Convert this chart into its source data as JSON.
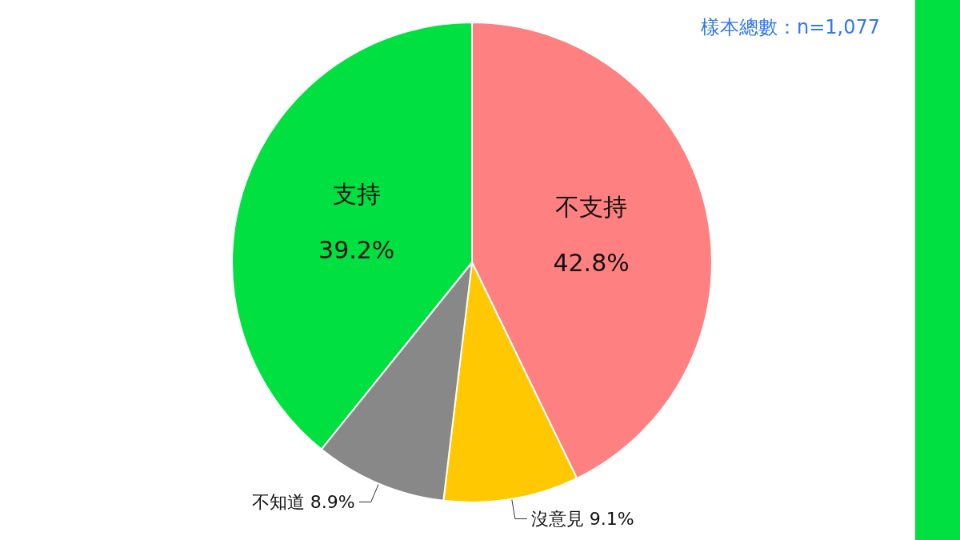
{
  "chart_data": {
    "type": "pie",
    "categories": [
      "不支持",
      "沒意見",
      "不知道",
      "支持"
    ],
    "values": [
      42.8,
      9.1,
      8.9,
      39.2
    ],
    "colors": [
      "#ff8080",
      "#ffc800",
      "#888888",
      "#00e040"
    ],
    "value_labels": [
      "42.8%",
      "9.1%",
      "8.9%",
      "39.2%"
    ],
    "legend": false,
    "annotations": [
      "樣本總數：n=1,077"
    ]
  }
}
